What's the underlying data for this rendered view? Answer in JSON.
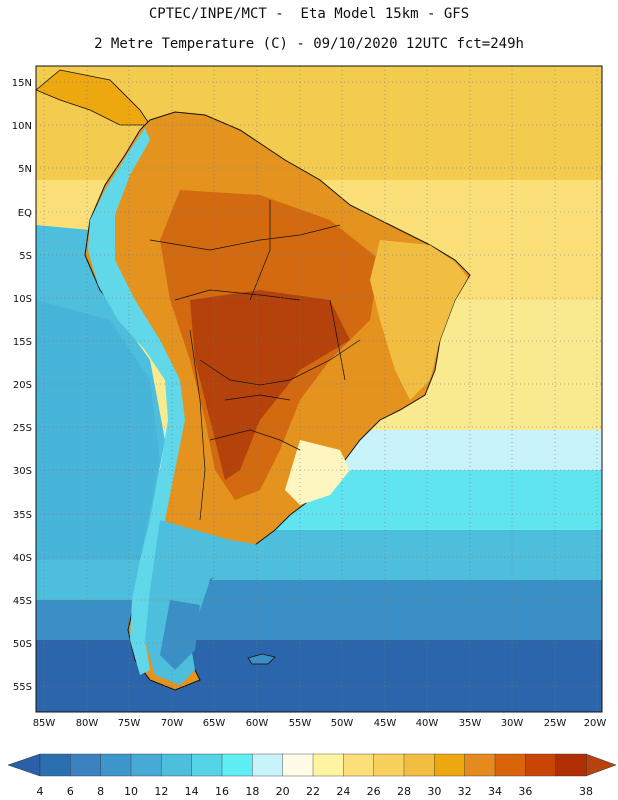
{
  "title": {
    "line1": "CPTEC/INPE/MCT -  Eta Model 15km - GFS",
    "line2": "2 Metre Temperature (C) - 09/10/2020 12UTC fct=249h"
  },
  "map": {
    "lat_labels": [
      "15N",
      "10N",
      "5N",
      "EQ",
      "5S",
      "10S",
      "15S",
      "20S",
      "25S",
      "30S",
      "35S",
      "40S",
      "45S",
      "50S",
      "55S"
    ],
    "lon_labels": [
      "85W",
      "80W",
      "75W",
      "70W",
      "65W",
      "60W",
      "55W",
      "50W",
      "45W",
      "40W",
      "35W",
      "30W",
      "25W",
      "20W"
    ]
  },
  "colorbar": {
    "labels": [
      "4",
      "6",
      "8",
      "10",
      "12",
      "14",
      "16",
      "18",
      "20",
      "22",
      "24",
      "26",
      "28",
      "30",
      "32",
      "34",
      "36",
      "38"
    ],
    "colors": [
      "#2a6fb0",
      "#3a82c0",
      "#3e97cc",
      "#47a9d6",
      "#4dbfdd",
      "#55d3e7",
      "#60eef5",
      "#c8f3fb",
      "#fffbe6",
      "#fff5a0",
      "#fbe07a",
      "#f7d05e",
      "#f1be42",
      "#eda70f",
      "#e58a1f",
      "#d9640a",
      "#c94506",
      "#b02f04"
    ],
    "low_color": "#2b5fa8",
    "high_color": "#b8420e"
  }
}
